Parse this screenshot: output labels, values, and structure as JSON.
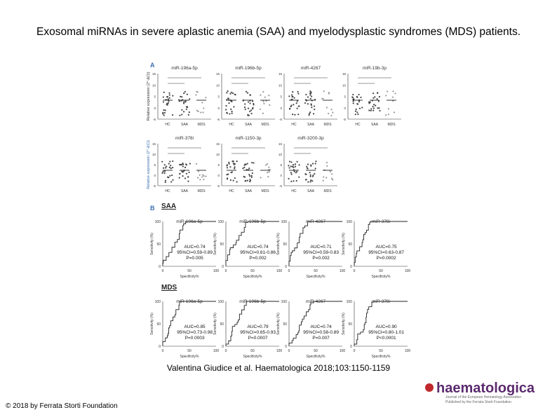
{
  "title": "Exosomal miRNAs in severe aplastic anemia (SAA) and myelodysplastic syndromes (MDS) patients.",
  "figure": {
    "panel_a": {
      "label": "A",
      "y_label": "Relative expression (2^-ΔCt)",
      "groups": [
        "HC",
        "SAA",
        "MDS"
      ],
      "plots": [
        {
          "title": "miR-196a-5p"
        },
        {
          "title": "miR-196b-5p"
        },
        {
          "title": "miR-4267"
        },
        {
          "title": "miR-19b-3p"
        },
        {
          "title": "miR-378i"
        },
        {
          "title": "miR-1150-3p"
        },
        {
          "title": "miR-3200-3p"
        }
      ],
      "y_ticks": [
        "15",
        "10",
        "5",
        "0",
        "-5"
      ]
    },
    "panel_b": {
      "label": "B",
      "y_label": "Sensitivity (%)",
      "x_label": "Specificity%",
      "ticks": [
        "0",
        "50",
        "100"
      ],
      "saa": {
        "heading": "SAA",
        "plots": [
          {
            "title": "miR-196a-5p",
            "auc": "AUC=0.74",
            "ci": "95%CI=0.59-0.89",
            "p": "P=0.005"
          },
          {
            "title": "miR-196b-5p",
            "auc": "AUC=0.74",
            "ci": "95%CI=0.61-0.86",
            "p": "P=0.002"
          },
          {
            "title": "miR-4267",
            "auc": "AUC=0.71",
            "ci": "95%CI=0.59-0.83",
            "p": "P=0.002"
          },
          {
            "title": "miR-378i",
            "auc": "AUC=0.75",
            "ci": "95%CI=0.63-0.87",
            "p": "P=0.0002"
          }
        ]
      },
      "mds": {
        "heading": "MDS",
        "plots": [
          {
            "title": "miR-196a-5p",
            "auc": "AUC=0.85",
            "ci": "95%CI=0.73-0.98",
            "p": "P=0.0003"
          },
          {
            "title": "miR-196b-5p",
            "auc": "AUC=0.79",
            "ci": "95%CI=0.65-0.93",
            "p": "P=0.0007"
          },
          {
            "title": "miR-4267",
            "auc": "AUC=0.74",
            "ci": "95%CI=0.58-0.89",
            "p": "P=0.007"
          },
          {
            "title": "miR-378i",
            "auc": "AUC=0.90",
            "ci": "95%CI=0.80-1.01",
            "p": "P<0.0001"
          }
        ]
      }
    }
  },
  "citation": "Valentina Giudice et al. Haematologica 2018;103:1150-1159",
  "copyright": "© 2018 by Ferrata Storti Foundation",
  "logo": {
    "name": "haematologica",
    "line1": "Journal of the European Hematology Association",
    "line2": "Published by the Ferrata Storti Foundation"
  }
}
